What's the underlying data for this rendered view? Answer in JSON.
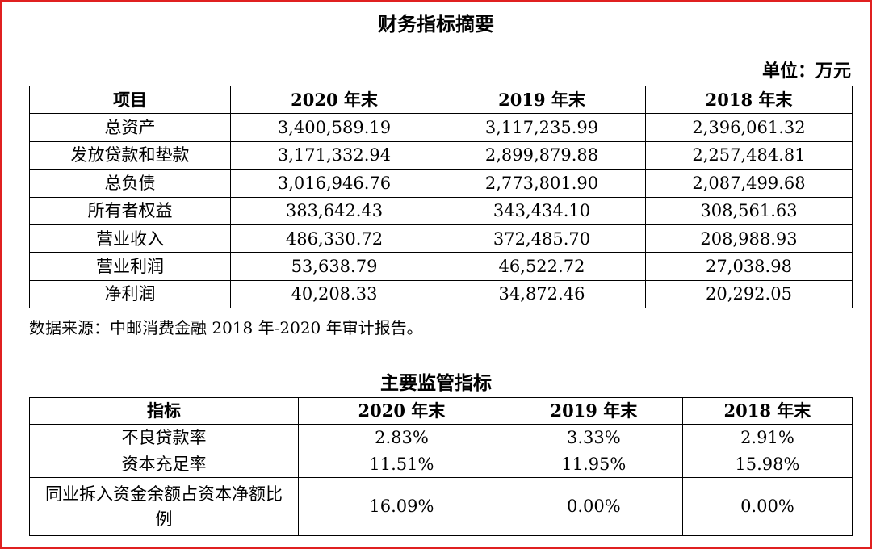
{
  "table1": {
    "title": "财务指标摘要",
    "unit": "单位：万元",
    "headers": [
      "项目",
      "2020 年末",
      "2019 年末",
      "2018 年末"
    ],
    "rows": [
      [
        "总资产",
        "3,400,589.19",
        "3,117,235.99",
        "2,396,061.32"
      ],
      [
        "发放贷款和垫款",
        "3,171,332.94",
        "2,899,879.88",
        "2,257,484.81"
      ],
      [
        "总负债",
        "3,016,946.76",
        "2,773,801.90",
        "2,087,499.68"
      ],
      [
        "所有者权益",
        "383,642.43",
        "343,434.10",
        "308,561.63"
      ],
      [
        "营业收入",
        "486,330.72",
        "372,485.70",
        "208,988.93"
      ],
      [
        "营业利润",
        "53,638.79",
        "46,522.72",
        "27,038.98"
      ],
      [
        "净利润",
        "40,208.33",
        "34,872.46",
        "20,292.05"
      ]
    ],
    "source": "数据来源：中邮消费金融 2018 年-2020 年审计报告。"
  },
  "table2": {
    "title": "主要监管指标",
    "headers": [
      "指标",
      "2020 年末",
      "2019 年末",
      "2018 年末"
    ],
    "rows": [
      [
        "不良贷款率",
        "2.83%",
        "3.33%",
        "2.91%"
      ],
      [
        "资本充足率",
        "11.51%",
        "11.95%",
        "15.98%"
      ],
      [
        "同业拆入资金余额占资本净额比例",
        "16.09%",
        "0.00%",
        "0.00%"
      ]
    ]
  },
  "colors": {
    "frame_border": "#e02020"
  }
}
